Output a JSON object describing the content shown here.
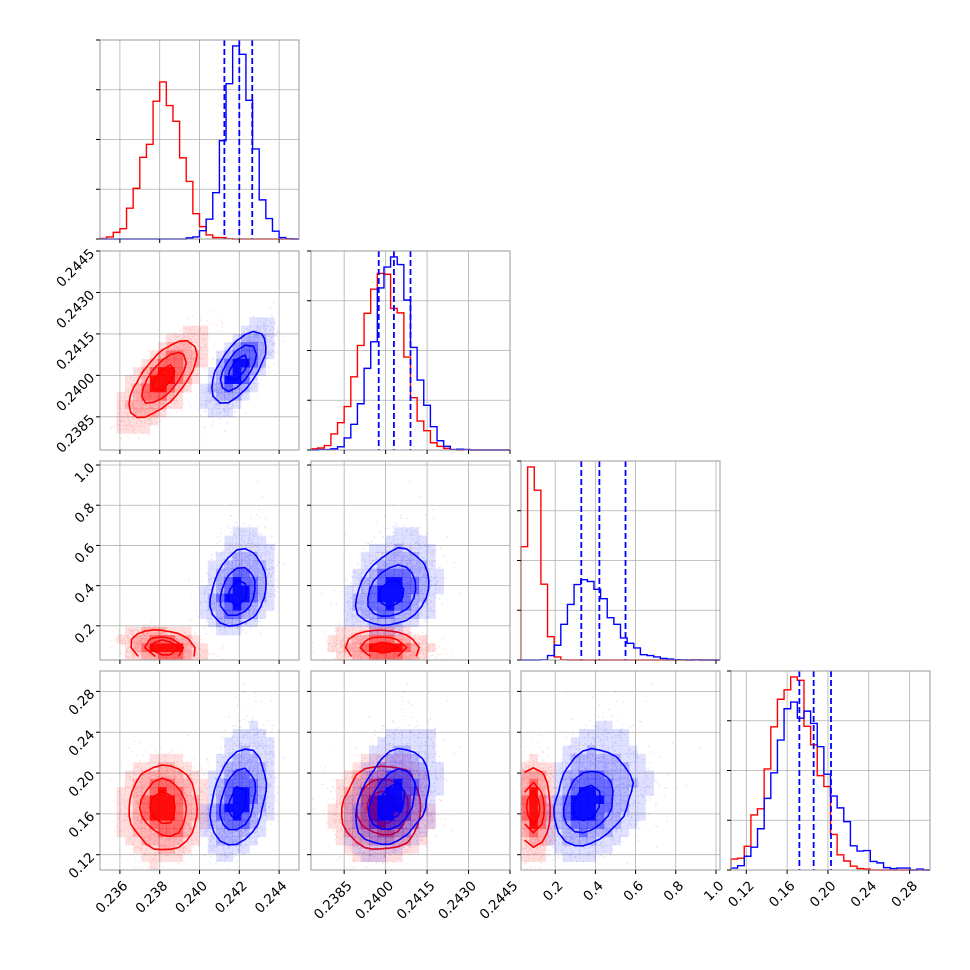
{
  "chart_data": {
    "type": "corner",
    "colors": {
      "red_run": "#ff0000",
      "blue_run": "#0000ff"
    },
    "grid": true,
    "parameters": [
      {
        "range": [
          0.235,
          0.245
        ],
        "ticks": [
          0.236,
          0.238,
          0.24,
          0.242,
          0.244
        ],
        "tick_labels": [
          "0.236",
          "0.238",
          "0.240",
          "0.242",
          "0.244"
        ]
      },
      {
        "range": [
          0.2373,
          0.2445
        ],
        "ticks": [
          0.2385,
          0.24,
          0.2415,
          0.243,
          0.2445
        ],
        "tick_labels": [
          "0.2385",
          "0.2400",
          "0.2415",
          "0.2430",
          "0.2445"
        ]
      },
      {
        "range": [
          0.03,
          1.02
        ],
        "ticks": [
          0.2,
          0.4,
          0.6,
          0.8,
          1.0
        ],
        "tick_labels": [
          "0.2",
          "0.4",
          "0.6",
          "0.8",
          "1.0"
        ]
      },
      {
        "range": [
          0.105,
          0.3
        ],
        "x_ticks": [
          0.12,
          0.16,
          0.2,
          0.24,
          0.28
        ],
        "x_tick_labels": [
          "0.12",
          "0.16",
          "0.20",
          "0.24",
          "0.28"
        ],
        "y_ticks": [
          0.12,
          0.16,
          0.2,
          0.24,
          0.28
        ],
        "y_tick_labels": [
          "0.12",
          "0.16",
          "0.20",
          "0.24",
          "0.28"
        ]
      }
    ],
    "series": [
      {
        "color": "#ff0000",
        "means": [
          0.2382,
          0.2399,
          0.09,
          0.165
        ],
        "sds": [
          0.0009,
          0.00075,
          0.04,
          0.022
        ],
        "correlations": {
          "1-0": 0.75,
          "2-0": -0.3,
          "2-1": -0.1,
          "3-0": 0.0,
          "3-1": 0.05,
          "3-2": 0.0
        },
        "marginal_peaks": [
          0.2378,
          0.2398,
          0.07,
          0.158
        ]
      },
      {
        "color": "#0000ff",
        "means": [
          0.242,
          0.2403,
          0.42,
          0.185
        ],
        "sds": [
          0.0007,
          0.0007,
          0.12,
          0.028
        ],
        "correlations": {
          "1-0": 0.75,
          "2-0": 0.3,
          "2-1": 0.3,
          "3-0": 0.4,
          "3-1": 0.4,
          "3-2": 0.3
        },
        "quantiles": [
          [
            0.24125,
            0.242,
            0.24265
          ],
          [
            0.23975,
            0.2403,
            0.2409
          ],
          [
            0.33,
            0.42,
            0.55
          ],
          [
            0.172,
            0.186,
            0.203
          ]
        ]
      }
    ]
  }
}
